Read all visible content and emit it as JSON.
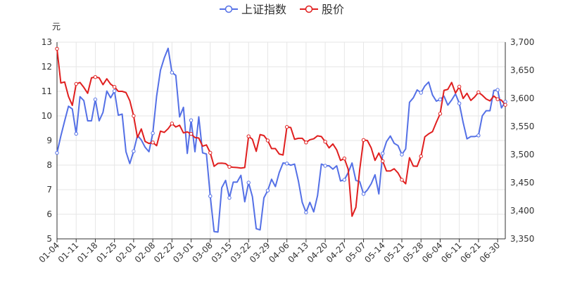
{
  "chart_data": {
    "type": "line",
    "legend": {
      "placement": "top-center",
      "items": [
        {
          "name": "上证指数",
          "color": "#5470e6"
        },
        {
          "name": "股价",
          "color": "#e01f1f"
        }
      ]
    },
    "y_left": {
      "unit": "元",
      "min": 5,
      "max": 13,
      "ticks": [
        "5",
        "6",
        "7",
        "8",
        "9",
        "10",
        "11",
        "12",
        "13"
      ]
    },
    "y_right": {
      "min": 3350,
      "max": 3700,
      "ticks": [
        "3,350",
        "3,400",
        "3,450",
        "3,500",
        "3,550",
        "3,600",
        "3,650",
        "3,700"
      ]
    },
    "x_ticks": [
      "01-04",
      "01-11",
      "01-18",
      "01-25",
      "02-01",
      "02-08",
      "02-22",
      "03-01",
      "03-08",
      "03-15",
      "03-22",
      "03-29",
      "04-06",
      "04-13",
      "04-20",
      "04-27",
      "05-07",
      "05-14",
      "05-21",
      "05-28",
      "06-04",
      "06-11",
      "06-21",
      "06-30"
    ],
    "x_tick_index": [
      0,
      5,
      10,
      15,
      20,
      25,
      30,
      35,
      40,
      45,
      50,
      55,
      60,
      65,
      70,
      75,
      80,
      85,
      90,
      95,
      100,
      105,
      110,
      115
    ],
    "grid": true,
    "series": [
      {
        "name": "上证指数",
        "axis": "right",
        "color": "#5470e6",
        "values": [
          3503,
          3533,
          3560,
          3586,
          3581,
          3537,
          3603,
          3596,
          3560,
          3560,
          3598,
          3560,
          3575,
          3613,
          3601,
          3613,
          3570,
          3572,
          3505,
          3484,
          3506,
          3534,
          3526,
          3513,
          3505,
          3538,
          3604,
          3650,
          3672,
          3689,
          3646,
          3641,
          3567,
          3584,
          3502,
          3561,
          3505,
          3567,
          3503,
          3501,
          3426,
          3363,
          3362,
          3441,
          3454,
          3423,
          3451,
          3451,
          3463,
          3416,
          3450,
          3425,
          3368,
          3366,
          3423,
          3436,
          3456,
          3443,
          3468,
          3485,
          3484,
          3481,
          3483,
          3453,
          3415,
          3397,
          3415,
          3398,
          3427,
          3483,
          3480,
          3480,
          3474,
          3480,
          3453,
          3455,
          3468,
          3485,
          3454,
          3452,
          3430,
          3437,
          3448,
          3464,
          3430,
          3502,
          3523,
          3533,
          3520,
          3516,
          3500,
          3510,
          3593,
          3601,
          3615,
          3610,
          3622,
          3629,
          3606,
          3595,
          3598,
          3604,
          3588,
          3597,
          3608,
          3591,
          3557,
          3528,
          3532,
          3532,
          3534,
          3569,
          3578,
          3578,
          3614,
          3615,
          3583,
          3594
        ]
      },
      {
        "name": "股价",
        "axis": "left",
        "color": "#e01f1f",
        "values": [
          12.73,
          11.34,
          11.38,
          10.79,
          10.43,
          11.3,
          11.36,
          11.16,
          10.92,
          11.55,
          11.58,
          11.55,
          11.27,
          11.51,
          11.29,
          11.18,
          11.0,
          11.0,
          10.95,
          10.62,
          10.0,
          9.12,
          9.47,
          8.96,
          8.88,
          8.92,
          8.79,
          9.38,
          9.33,
          9.48,
          9.69,
          9.55,
          9.62,
          9.31,
          9.35,
          9.27,
          9.12,
          9.1,
          8.77,
          8.82,
          8.5,
          7.95,
          8.07,
          8.08,
          8.06,
          7.93,
          7.91,
          7.9,
          7.88,
          7.9,
          9.17,
          9.05,
          8.56,
          9.24,
          9.2,
          9.0,
          8.67,
          8.67,
          8.45,
          8.41,
          9.55,
          9.53,
          9.05,
          9.09,
          9.09,
          8.92,
          9.03,
          9.07,
          9.19,
          9.16,
          8.95,
          8.7,
          8.86,
          8.62,
          8.19,
          8.27,
          7.83,
          5.92,
          6.28,
          7.81,
          9.02,
          9.0,
          8.7,
          8.19,
          8.49,
          8.16,
          7.76,
          7.76,
          7.85,
          7.68,
          7.4,
          7.24,
          8.3,
          7.96,
          7.95,
          8.36,
          9.15,
          9.27,
          9.36,
          9.74,
          10.09,
          11.04,
          11.08,
          11.36,
          10.93,
          11.19,
          10.71,
          10.92,
          10.63,
          10.77,
          10.96,
          10.84,
          10.69,
          10.61,
          10.81,
          10.68,
          10.64,
          10.45
        ]
      }
    ]
  }
}
